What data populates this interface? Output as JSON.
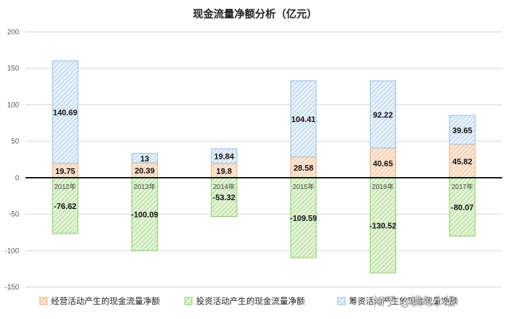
{
  "chart_data": {
    "type": "bar",
    "stacked": true,
    "title": "现金流量净额分析（亿元）",
    "categories": [
      "2012年",
      "2013年",
      "2014年",
      "2015年",
      "2016年",
      "2017年"
    ],
    "series": [
      {
        "name": "经营活动产生的现金流量净额",
        "values": [
          19.75,
          20.39,
          19.8,
          28.58,
          40.65,
          45.82
        ],
        "labels": [
          "19.75",
          "20.39",
          "19.8",
          "28.58",
          "40.65",
          "45.82"
        ],
        "color": "#f4b183"
      },
      {
        "name": "投资活动产生的现金流量净额",
        "values": [
          -76.62,
          -100.09,
          -53.32,
          -109.59,
          -130.52,
          -80.07
        ],
        "labels": [
          "-76.62",
          "-100.09",
          "-53.32",
          "-109.59",
          "-130.52",
          "-80.07"
        ],
        "color": "#8fd16a"
      },
      {
        "name": "筹资活动产生的现金流量净额",
        "values": [
          140.69,
          13,
          19.84,
          104.41,
          92.22,
          39.65
        ],
        "labels": [
          "140.69",
          "13",
          "19.84",
          "104.41",
          "92.22",
          "39.65"
        ],
        "color": "#9dc3e6"
      }
    ],
    "ylim": [
      -150,
      200
    ],
    "yticks": [
      -150,
      -100,
      -50,
      0,
      50,
      100,
      150,
      200
    ],
    "grid": true,
    "legend": "bottom"
  },
  "watermark": "知乎 @横龟小组"
}
